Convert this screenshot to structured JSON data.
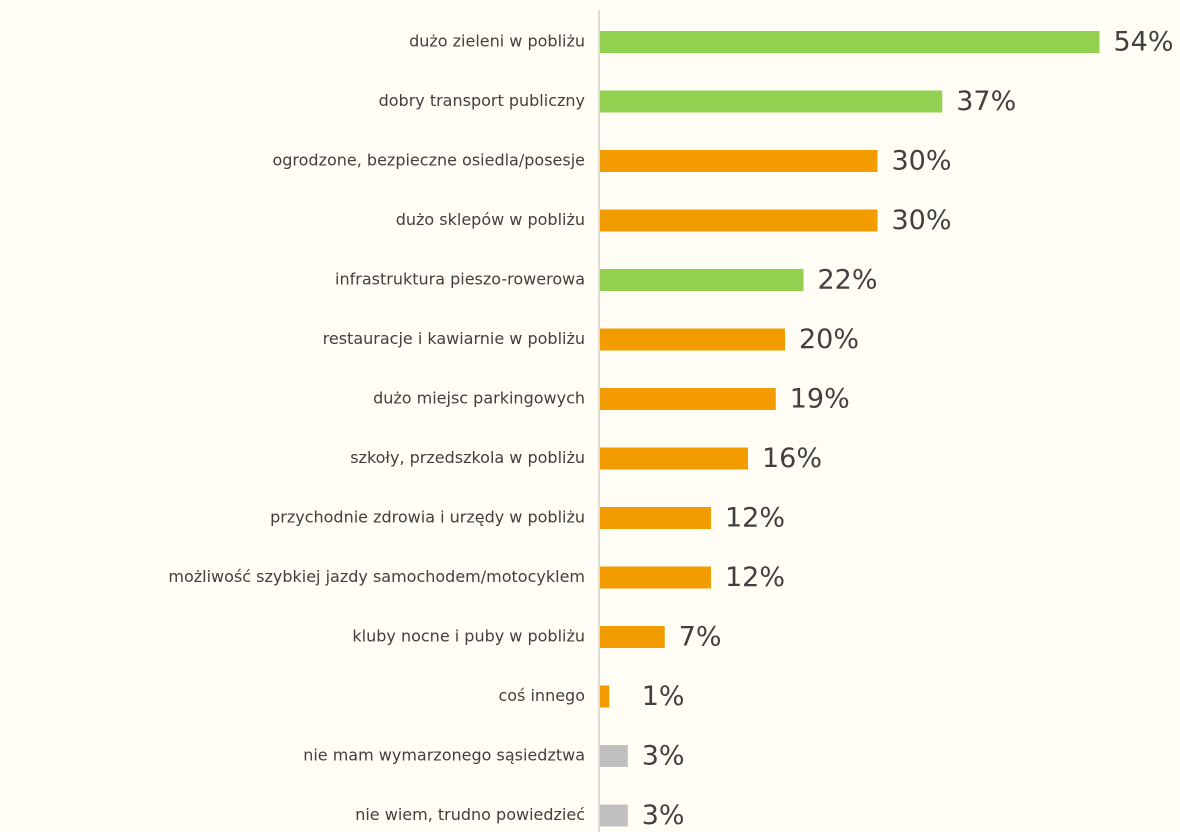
{
  "chart_data": {
    "type": "barh",
    "categories": [
      "dużo zieleni w pobliżu",
      "dobry transport publiczny",
      "ogrodzone, bezpieczne osiedla/posesje",
      "dużo sklepów w pobliżu",
      "infrastruktura pieszo-rowerowa",
      "restauracje i kawiarnie w pobliżu",
      "dużo miejsc parkingowych",
      "szkoły, przedszkola w pobliżu",
      "przychodnie zdrowia i urzędy w pobliżu",
      "możliwość szybkiej jazdy samochodem/motocyklem",
      "kluby nocne i puby w pobliżu",
      "coś innego",
      "nie mam wymarzonego sąsiedztwa",
      "nie wiem, trudno powiedzieć"
    ],
    "values": [
      54,
      37,
      30,
      30,
      22,
      20,
      19,
      16,
      12,
      12,
      7,
      1,
      3,
      3
    ],
    "value_labels": [
      "54%",
      "37%",
      "30%",
      "30%",
      "22%",
      "20%",
      "19%",
      "16%",
      "12%",
      "12%",
      "7%",
      "1%",
      "3%",
      "3%"
    ],
    "colors": [
      "#92d050",
      "#92d050",
      "#f39c00",
      "#f39c00",
      "#92d050",
      "#f39c00",
      "#f39c00",
      "#f39c00",
      "#f39c00",
      "#f39c00",
      "#f39c00",
      "#f39c00",
      "#bfbfbf",
      "#bfbfbf"
    ]
  }
}
